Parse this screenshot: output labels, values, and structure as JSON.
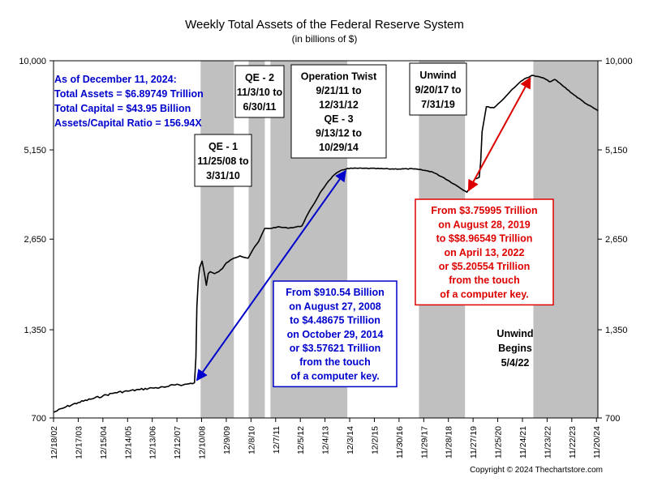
{
  "chart_data": {
    "type": "line",
    "title": "Weekly Total Assets of the Federal Reserve System",
    "subtitle": "(in billions of $)",
    "y_scale": "log",
    "ylim": [
      700,
      10000
    ],
    "y_ticks": [
      {
        "value": 700,
        "label": "700"
      },
      {
        "value": 1350,
        "label": "1,350"
      },
      {
        "value": 2650,
        "label": "2,650"
      },
      {
        "value": 5150,
        "label": "5,150"
      },
      {
        "value": 10000,
        "label": "10,000"
      }
    ],
    "x_range": [
      "2002-12-18",
      "2024-12-11"
    ],
    "x_ticks": [
      {
        "date": "2002-12-18",
        "label": "12/18/02"
      },
      {
        "date": "2003-12-17",
        "label": "12/17/03"
      },
      {
        "date": "2004-12-15",
        "label": "12/15/04"
      },
      {
        "date": "2005-12-14",
        "label": "12/14/05"
      },
      {
        "date": "2006-12-13",
        "label": "12/13/06"
      },
      {
        "date": "2007-12-12",
        "label": "12/12/07"
      },
      {
        "date": "2008-12-10",
        "label": "12/10/08"
      },
      {
        "date": "2009-12-09",
        "label": "12/9/09"
      },
      {
        "date": "2010-12-08",
        "label": "12/8/10"
      },
      {
        "date": "2011-12-07",
        "label": "12/7/11"
      },
      {
        "date": "2012-12-05",
        "label": "12/5/12"
      },
      {
        "date": "2013-12-04",
        "label": "12/4/13"
      },
      {
        "date": "2014-12-03",
        "label": "12/3/14"
      },
      {
        "date": "2015-12-02",
        "label": "12/2/15"
      },
      {
        "date": "2016-11-30",
        "label": "11/30/16"
      },
      {
        "date": "2017-11-29",
        "label": "11/29/17"
      },
      {
        "date": "2018-11-28",
        "label": "11/28/18"
      },
      {
        "date": "2019-11-27",
        "label": "11/27/19"
      },
      {
        "date": "2020-11-25",
        "label": "11/25/20"
      },
      {
        "date": "2021-11-24",
        "label": "11/24/21"
      },
      {
        "date": "2022-11-23",
        "label": "11/23/22"
      },
      {
        "date": "2023-11-22",
        "label": "11/22/23"
      },
      {
        "date": "2024-11-20",
        "label": "11/20/24"
      }
    ],
    "shaded_periods": [
      {
        "start": "2008-11-25",
        "end": "2010-03-31"
      },
      {
        "start": "2010-11-03",
        "end": "2011-06-30"
      },
      {
        "start": "2011-09-21",
        "end": "2014-10-29"
      },
      {
        "start": "2017-09-20",
        "end": "2019-07-31"
      },
      {
        "start": "2022-05-04",
        "end": "2024-12-11"
      }
    ],
    "period_labels": [
      {
        "lines": [
          "QE - 1",
          "11/25/08 to",
          "3/31/10"
        ]
      },
      {
        "lines": [
          "QE - 2",
          "11/3/10 to",
          "6/30/11"
        ]
      },
      {
        "lines": [
          "Operation Twist",
          "9/21/11 to",
          "12/31/12",
          "QE - 3",
          "9/13/12 to",
          "10/29/14"
        ]
      },
      {
        "lines": [
          "Unwind",
          "9/20/17 to",
          "7/31/19"
        ]
      },
      {
        "lines": [
          "Unwind",
          "Begins",
          "5/4/22"
        ]
      }
    ],
    "series": [
      {
        "color": "#000000",
        "points": [
          [
            "2002-12-18",
            730
          ],
          [
            "2003-06-18",
            760
          ],
          [
            "2003-12-17",
            785
          ],
          [
            "2004-06-16",
            805
          ],
          [
            "2004-12-15",
            825
          ],
          [
            "2005-06-15",
            845
          ],
          [
            "2005-12-14",
            855
          ],
          [
            "2006-06-14",
            865
          ],
          [
            "2006-12-13",
            875
          ],
          [
            "2007-06-13",
            880
          ],
          [
            "2007-08-08",
            885
          ],
          [
            "2007-12-12",
            900
          ],
          [
            "2008-03-12",
            895
          ],
          [
            "2008-08-27",
            910.54
          ],
          [
            "2008-09-17",
            1100
          ],
          [
            "2008-10-01",
            1600
          ],
          [
            "2008-10-22",
            1950
          ],
          [
            "2008-11-12",
            2150
          ],
          [
            "2008-12-17",
            2250
          ],
          [
            "2009-01-21",
            2050
          ],
          [
            "2009-02-18",
            1880
          ],
          [
            "2009-03-18",
            2050
          ],
          [
            "2009-04-15",
            2080
          ],
          [
            "2009-06-17",
            2050
          ],
          [
            "2009-08-19",
            2080
          ],
          [
            "2009-10-14",
            2130
          ],
          [
            "2009-12-09",
            2220
          ],
          [
            "2010-03-31",
            2300
          ],
          [
            "2010-06-30",
            2340
          ],
          [
            "2010-10-27",
            2300
          ],
          [
            "2011-01-05",
            2450
          ],
          [
            "2011-03-30",
            2600
          ],
          [
            "2011-06-29",
            2870
          ],
          [
            "2011-09-21",
            2870
          ],
          [
            "2011-12-28",
            2900
          ],
          [
            "2012-06-27",
            2880
          ],
          [
            "2012-12-26",
            2920
          ],
          [
            "2013-03-27",
            3200
          ],
          [
            "2013-06-26",
            3450
          ],
          [
            "2013-09-25",
            3750
          ],
          [
            "2013-12-25",
            4000
          ],
          [
            "2014-03-26",
            4230
          ],
          [
            "2014-06-25",
            4380
          ],
          [
            "2014-10-29",
            4486.75
          ],
          [
            "2015-06-24",
            4490
          ],
          [
            "2016-06-29",
            4470
          ],
          [
            "2017-06-28",
            4470
          ],
          [
            "2017-09-20",
            4450
          ],
          [
            "2018-03-28",
            4380
          ],
          [
            "2018-09-26",
            4180
          ],
          [
            "2019-03-27",
            3950
          ],
          [
            "2019-08-28",
            3759.95
          ],
          [
            "2019-10-30",
            3950
          ],
          [
            "2019-12-25",
            4150
          ],
          [
            "2020-02-26",
            4200
          ],
          [
            "2020-03-18",
            4700
          ],
          [
            "2020-04-08",
            5900
          ],
          [
            "2020-06-10",
            7100
          ],
          [
            "2020-09-30",
            7050
          ],
          [
            "2020-12-30",
            7350
          ],
          [
            "2021-03-31",
            7700
          ],
          [
            "2021-06-30",
            8100
          ],
          [
            "2021-09-29",
            8450
          ],
          [
            "2021-12-29",
            8750
          ],
          [
            "2022-04-13",
            8965.49
          ],
          [
            "2022-09-28",
            8800
          ],
          [
            "2022-12-28",
            8550
          ],
          [
            "2023-03-15",
            8700
          ],
          [
            "2023-06-28",
            8350
          ],
          [
            "2023-12-27",
            7750
          ],
          [
            "2024-06-26",
            7250
          ],
          [
            "2024-12-11",
            6897.49
          ]
        ]
      }
    ],
    "annotations": {
      "info": [
        "As of December 11, 2024:",
        "Total Assets = $6.89749 Trillion",
        "Total Capital  = $43.95 Billion",
        "Assets/Capital Ratio = 156.94X"
      ],
      "blue_box": [
        "From $910.54 Billion",
        "on August 27, 2008",
        "to $4.48675 Trillion",
        "on October 29, 2014",
        "or $3.57621 Trillion",
        "from the touch",
        "of a computer key."
      ],
      "red_box": [
        "From $3.75995 Trillion",
        "on August 28, 2019",
        "to $$8.96549 Trillion",
        "on April 13, 2022",
        "or $5.20554 Trillion",
        "from the touch",
        "of a computer key."
      ],
      "blue_arrow": {
        "from": [
          "2008-08-27",
          910.54
        ],
        "to": [
          "2014-10-29",
          4486.75
        ]
      },
      "red_arrow": {
        "from": [
          "2019-08-28",
          3759.95
        ],
        "to": [
          "2022-04-13",
          8965.49
        ]
      }
    },
    "copyright": "Copyright © 2024 Thechartstore.com",
    "colors": {
      "shade": "#c0c0c0",
      "blue": "#0000cc",
      "red": "#dd0000",
      "line": "#000000"
    }
  }
}
